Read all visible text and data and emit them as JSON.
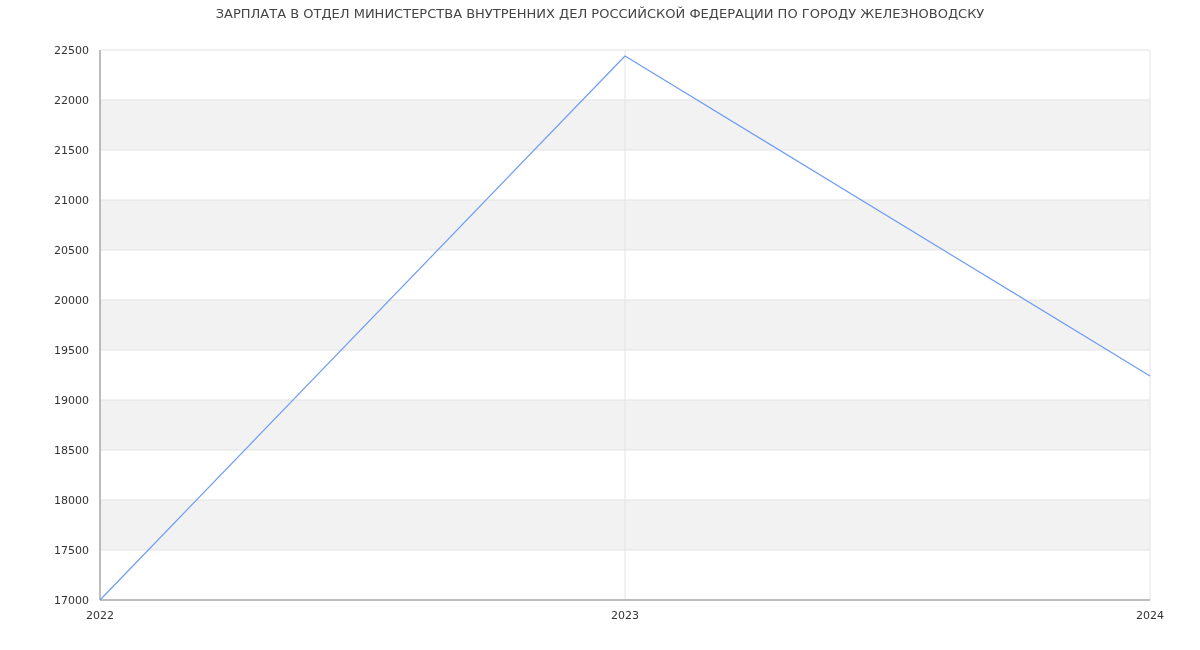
{
  "chart_data": {
    "type": "line",
    "title": "ЗАРПЛАТА В ОТДЕЛ МИНИСТЕРСТВА ВНУТРЕННИХ ДЕЛ РОССИЙСКОЙ ФЕДЕРАЦИИ ПО ГОРОДУ ЖЕЛЕЗНОВОДСКУ",
    "x": [
      2022,
      2023,
      2024
    ],
    "series": [
      {
        "color": "#6f9cf5",
        "values": [
          17000,
          22440,
          19240
        ]
      }
    ],
    "xlim": [
      2022,
      2024
    ],
    "xticks": [
      2022,
      2023,
      2024
    ],
    "ylim": [
      17000,
      22500
    ],
    "yticks": [
      17000,
      17500,
      18000,
      18500,
      19000,
      19500,
      20000,
      20500,
      21000,
      21500,
      22000,
      22500
    ],
    "grid": true,
    "marker": "none",
    "line_style": "solid"
  }
}
